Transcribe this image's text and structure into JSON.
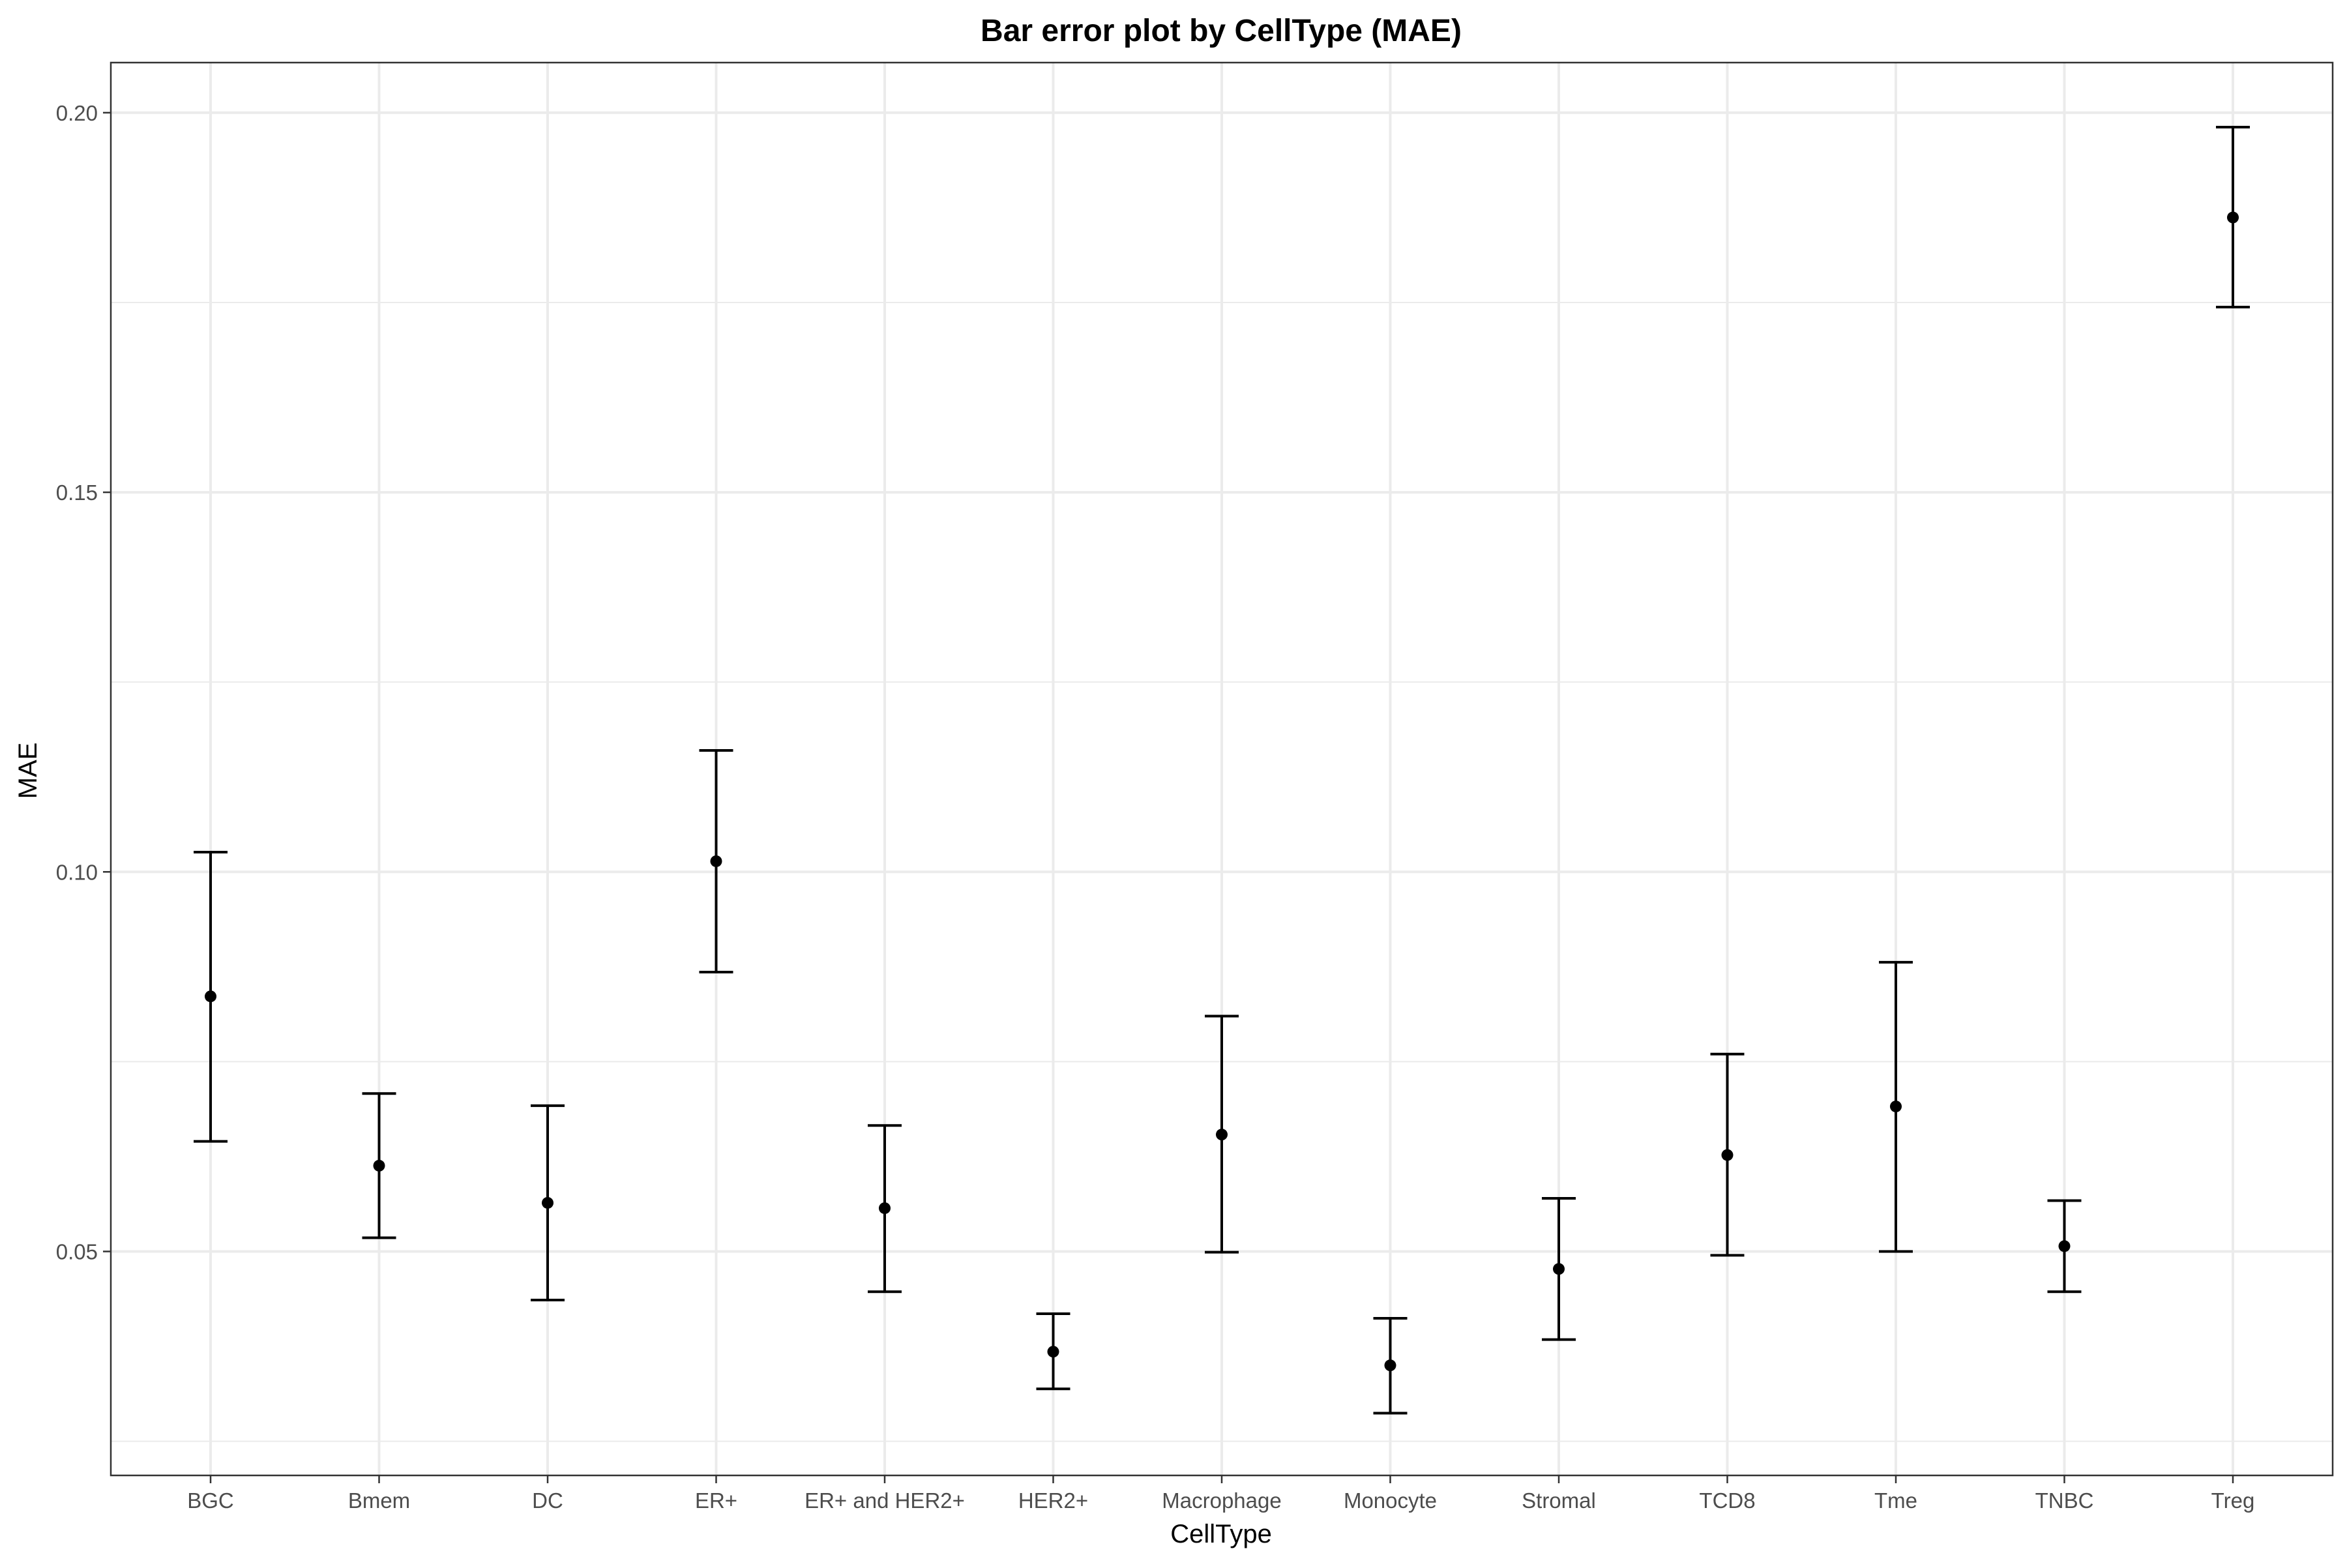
{
  "chart_data": {
    "type": "errorbar",
    "title": "Bar error plot by CellType (MAE)",
    "xlabel": "CellType",
    "ylabel": "MAE",
    "ylim": [
      0.0205,
      0.2066
    ],
    "yticks": [
      0.05,
      0.1,
      0.15,
      0.2
    ],
    "ytick_labels": [
      "0.05",
      "0.10",
      "0.15",
      "0.20"
    ],
    "grid": true,
    "categories": [
      "BGC",
      "Bmem",
      "DC",
      "ER+",
      "ER+ and HER2+",
      "HER2+",
      "Macrophage",
      "Monocyte",
      "Stromal",
      "TCD8",
      "Tme",
      "TNBC",
      "Treg"
    ],
    "values": [
      0.0836,
      0.0613,
      0.0564,
      0.1014,
      0.0557,
      0.0368,
      0.0654,
      0.035,
      0.0477,
      0.0627,
      0.0691,
      0.0507,
      0.1862
    ],
    "lower": [
      0.0645,
      0.0518,
      0.0436,
      0.0868,
      0.0447,
      0.0319,
      0.0499,
      0.0287,
      0.0384,
      0.0495,
      0.05,
      0.0447,
      0.1744
    ],
    "upper": [
      0.1026,
      0.0708,
      0.0692,
      0.116,
      0.0666,
      0.0418,
      0.081,
      0.0412,
      0.057,
      0.076,
      0.0881,
      0.0567,
      0.1981
    ],
    "colors": {
      "point": "#000000",
      "errorbar": "#000000",
      "grid": "#ebebeb",
      "panel_border": "#333333",
      "text": "#000000",
      "tick_text": "#4d4d4d"
    }
  }
}
